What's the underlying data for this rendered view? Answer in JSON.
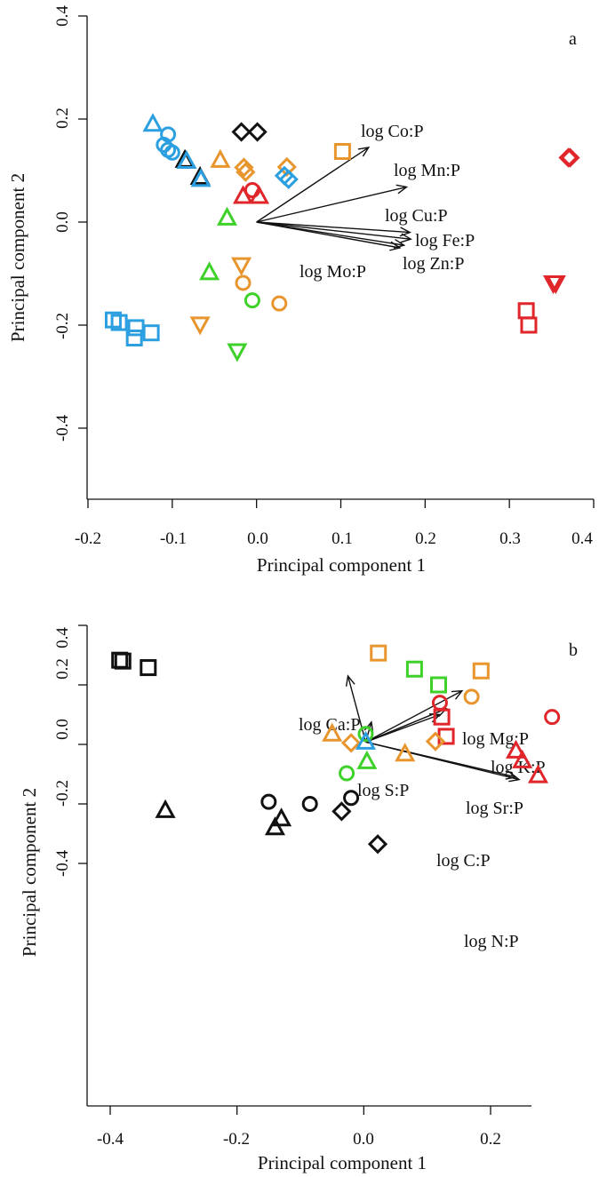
{
  "colors": {
    "black": "#111111",
    "blue": "#2b9fe0",
    "orange": "#e8952e",
    "green": "#3ed12a",
    "red": "#e0262a"
  },
  "chart_data": [
    {
      "type": "scatter",
      "panel_label": "a",
      "xlabel": "Principal component 1",
      "ylabel": "Principal component 2",
      "xlim": [
        -0.2,
        0.4
      ],
      "ylim": [
        -0.5,
        0.4
      ],
      "x_ticks": [
        -0.2,
        -0.1,
        0.0,
        0.1,
        0.2,
        0.3,
        0.4
      ],
      "x_tick_labels": [
        "-0.2",
        "-0.1",
        "0.0",
        "0.1",
        "0.2",
        "0.3",
        "0.4"
      ],
      "y_ticks": [
        -0.4,
        -0.2,
        0.0,
        0.2,
        0.4
      ],
      "y_tick_labels": [
        "-0.4",
        "-0.2",
        "0.0",
        "0.2",
        "0.4"
      ],
      "box": "left-bottom",
      "points": [
        {
          "x": -0.123,
          "y": 0.19,
          "shape": "triangle",
          "color": "blue"
        },
        {
          "x": -0.105,
          "y": 0.17,
          "shape": "circle",
          "color": "blue"
        },
        {
          "x": -0.11,
          "y": 0.15,
          "shape": "circle",
          "color": "blue"
        },
        {
          "x": -0.105,
          "y": 0.14,
          "shape": "circle",
          "color": "blue"
        },
        {
          "x": -0.1,
          "y": 0.135,
          "shape": "circle",
          "color": "blue"
        },
        {
          "x": -0.085,
          "y": 0.12,
          "shape": "triangle",
          "color": "black"
        },
        {
          "x": -0.083,
          "y": 0.118,
          "shape": "triangle",
          "color": "blue"
        },
        {
          "x": -0.067,
          "y": 0.087,
          "shape": "triangle",
          "color": "black"
        },
        {
          "x": -0.066,
          "y": 0.083,
          "shape": "triangle",
          "color": "blue"
        },
        {
          "x": -0.018,
          "y": 0.175,
          "shape": "diamond",
          "color": "black"
        },
        {
          "x": 0.001,
          "y": 0.175,
          "shape": "diamond",
          "color": "black"
        },
        {
          "x": -0.043,
          "y": 0.12,
          "shape": "triangle",
          "color": "orange"
        },
        {
          "x": -0.015,
          "y": 0.106,
          "shape": "diamond",
          "color": "orange"
        },
        {
          "x": -0.013,
          "y": 0.097,
          "shape": "diamond",
          "color": "orange"
        },
        {
          "x": 0.036,
          "y": 0.107,
          "shape": "diamond",
          "color": "orange"
        },
        {
          "x": 0.033,
          "y": 0.09,
          "shape": "diamond",
          "color": "blue"
        },
        {
          "x": 0.038,
          "y": 0.083,
          "shape": "diamond",
          "color": "blue"
        },
        {
          "x": 0.102,
          "y": 0.137,
          "shape": "square",
          "color": "orange"
        },
        {
          "x": -0.005,
          "y": 0.062,
          "shape": "circle",
          "color": "red"
        },
        {
          "x": -0.016,
          "y": 0.05,
          "shape": "triangle",
          "color": "red"
        },
        {
          "x": 0.003,
          "y": 0.05,
          "shape": "triangle",
          "color": "red"
        },
        {
          "x": -0.035,
          "y": 0.008,
          "shape": "triangle",
          "color": "green"
        },
        {
          "x": -0.056,
          "y": -0.098,
          "shape": "triangle",
          "color": "green"
        },
        {
          "x": -0.018,
          "y": -0.083,
          "shape": "invtriangle",
          "color": "orange"
        },
        {
          "x": -0.016,
          "y": -0.118,
          "shape": "circle",
          "color": "orange"
        },
        {
          "x": -0.005,
          "y": -0.152,
          "shape": "circle",
          "color": "green"
        },
        {
          "x": 0.027,
          "y": -0.158,
          "shape": "circle",
          "color": "orange"
        },
        {
          "x": -0.067,
          "y": -0.198,
          "shape": "invtriangle",
          "color": "orange"
        },
        {
          "x": -0.023,
          "y": -0.25,
          "shape": "invtriangle",
          "color": "green"
        },
        {
          "x": -0.17,
          "y": -0.19,
          "shape": "square",
          "color": "blue"
        },
        {
          "x": -0.163,
          "y": -0.195,
          "shape": "square",
          "color": "blue"
        },
        {
          "x": -0.143,
          "y": -0.205,
          "shape": "square",
          "color": "blue"
        },
        {
          "x": -0.125,
          "y": -0.215,
          "shape": "square",
          "color": "blue"
        },
        {
          "x": -0.145,
          "y": -0.225,
          "shape": "square",
          "color": "blue"
        },
        {
          "x": 0.372,
          "y": 0.125,
          "shape": "diamond",
          "color": "red"
        },
        {
          "x": 0.37,
          "y": 0.125,
          "shape": "diamond",
          "color": "red"
        },
        {
          "x": 0.352,
          "y": -0.118,
          "shape": "invtriangle",
          "color": "red"
        },
        {
          "x": 0.355,
          "y": -0.118,
          "shape": "invtriangle",
          "color": "red"
        },
        {
          "x": 0.32,
          "y": -0.172,
          "shape": "square",
          "color": "red"
        },
        {
          "x": 0.323,
          "y": -0.2,
          "shape": "square",
          "color": "red"
        }
      ],
      "vectors": [
        {
          "label": "log Co:P",
          "x": 0.133,
          "y": 0.145
        },
        {
          "label": "log Mn:P",
          "x": 0.178,
          "y": 0.068
        },
        {
          "label": "log Cu:P",
          "x": 0.182,
          "y": -0.02
        },
        {
          "label": "log Fe:P",
          "x": 0.183,
          "y": -0.033
        },
        {
          "label": "log Zn:P",
          "x": 0.175,
          "y": -0.045
        },
        {
          "label": "log Mo:P",
          "x": 0.17,
          "y": -0.05
        }
      ]
    },
    {
      "type": "scatter",
      "panel_label": "b",
      "xlabel": "Principal component 1",
      "ylabel": "Principal component 2",
      "xlim": [
        -0.4,
        0.3
      ],
      "ylim": [
        -0.5,
        0.4
      ],
      "x_ticks": [
        -0.4,
        -0.2,
        0.0,
        0.2
      ],
      "x_tick_labels": [
        "-0.4",
        "-0.2",
        "0.0",
        "0.2"
      ],
      "y_ticks": [
        -0.4,
        -0.2,
        0.0,
        0.2,
        0.4
      ],
      "y_tick_labels": [
        "-0.4",
        "-0.2",
        "0.0",
        "0.2",
        "0.4"
      ],
      "box": "left-bottom",
      "points": [
        {
          "x": -0.385,
          "y": 0.283,
          "shape": "square",
          "color": "black"
        },
        {
          "x": -0.38,
          "y": 0.28,
          "shape": "square",
          "color": "black"
        },
        {
          "x": -0.34,
          "y": 0.258,
          "shape": "square",
          "color": "black"
        },
        {
          "x": 0.023,
          "y": 0.307,
          "shape": "square",
          "color": "orange"
        },
        {
          "x": 0.08,
          "y": 0.253,
          "shape": "square",
          "color": "green"
        },
        {
          "x": 0.185,
          "y": 0.247,
          "shape": "square",
          "color": "orange"
        },
        {
          "x": 0.118,
          "y": 0.2,
          "shape": "square",
          "color": "green"
        },
        {
          "x": 0.12,
          "y": 0.14,
          "shape": "circle",
          "color": "red"
        },
        {
          "x": 0.17,
          "y": 0.16,
          "shape": "circle",
          "color": "orange"
        },
        {
          "x": 0.123,
          "y": 0.092,
          "shape": "square",
          "color": "red"
        },
        {
          "x": 0.297,
          "y": 0.092,
          "shape": "circle",
          "color": "red"
        },
        {
          "x": -0.05,
          "y": 0.035,
          "shape": "triangle",
          "color": "orange"
        },
        {
          "x": 0.003,
          "y": 0.035,
          "shape": "circle",
          "color": "green"
        },
        {
          "x": -0.02,
          "y": 0.005,
          "shape": "diamond",
          "color": "orange"
        },
        {
          "x": 0.003,
          "y": 0.008,
          "shape": "triangle",
          "color": "blue"
        },
        {
          "x": 0.13,
          "y": 0.027,
          "shape": "square",
          "color": "red"
        },
        {
          "x": 0.113,
          "y": 0.01,
          "shape": "diamond",
          "color": "orange"
        },
        {
          "x": 0.065,
          "y": -0.032,
          "shape": "triangle",
          "color": "orange"
        },
        {
          "x": 0.005,
          "y": -0.058,
          "shape": "triangle",
          "color": "green"
        },
        {
          "x": -0.027,
          "y": -0.097,
          "shape": "circle",
          "color": "green"
        },
        {
          "x": 0.24,
          "y": -0.022,
          "shape": "triangle",
          "color": "red"
        },
        {
          "x": 0.25,
          "y": -0.055,
          "shape": "triangle",
          "color": "red"
        },
        {
          "x": 0.275,
          "y": -0.105,
          "shape": "triangle",
          "color": "red"
        },
        {
          "x": -0.313,
          "y": -0.222,
          "shape": "triangle",
          "color": "black"
        },
        {
          "x": -0.15,
          "y": -0.193,
          "shape": "circle",
          "color": "black"
        },
        {
          "x": -0.085,
          "y": -0.2,
          "shape": "circle",
          "color": "black"
        },
        {
          "x": -0.02,
          "y": -0.18,
          "shape": "circle",
          "color": "black"
        },
        {
          "x": -0.035,
          "y": -0.225,
          "shape": "diamond",
          "color": "black"
        },
        {
          "x": -0.13,
          "y": -0.25,
          "shape": "triangle",
          "color": "black"
        },
        {
          "x": -0.14,
          "y": -0.28,
          "shape": "triangle",
          "color": "black"
        },
        {
          "x": 0.022,
          "y": -0.335,
          "shape": "diamond",
          "color": "black"
        }
      ],
      "vectors": [
        {
          "label": "log Ca:P",
          "x": -0.025,
          "y": 0.23
        },
        {
          "label": "log Mg:P",
          "x": 0.155,
          "y": 0.18
        },
        {
          "label": "log K:P",
          "x": 0.13,
          "y": 0.12
        },
        {
          "label": "log S:P",
          "x": 0.012,
          "y": 0.075
        },
        {
          "label": "log Sr:P",
          "x": 0.12,
          "y": 0.1
        },
        {
          "label": "log C:P",
          "x": 0.24,
          "y": -0.11
        },
        {
          "label": "log N:P",
          "x": 0.245,
          "y": -0.118
        }
      ]
    }
  ]
}
